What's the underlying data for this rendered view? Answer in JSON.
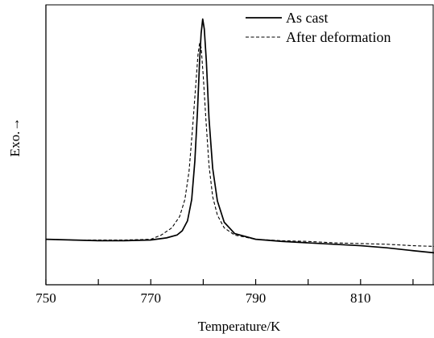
{
  "chart_data": {
    "type": "line",
    "xlabel": "Temperature/K",
    "ylabel": "Exo.→",
    "xlim": [
      750,
      824
    ],
    "ylim": [
      -0.32,
      1.65
    ],
    "grid": false,
    "legend_position": "top-right",
    "x_ticks": [
      750,
      760,
      770,
      780,
      790,
      800,
      810,
      820
    ],
    "x_tick_labels": [
      {
        "value": 750,
        "label": "750"
      },
      {
        "value": 770,
        "label": "770"
      },
      {
        "value": 790,
        "label": "790"
      },
      {
        "value": 810,
        "label": "810"
      }
    ],
    "series": [
      {
        "name": "As cast",
        "style": "solid",
        "color": "#000000",
        "x": [
          750,
          755,
          760,
          765,
          770,
          773,
          775,
          776,
          777,
          777.8,
          778.4,
          778.9,
          779.3,
          779.6,
          779.9,
          780.2,
          780.6,
          781.1,
          781.8,
          782.7,
          784,
          786,
          790,
          795,
          800,
          805,
          810,
          815,
          820,
          824
        ],
        "y": [
          0.0,
          -0.005,
          -0.01,
          -0.01,
          -0.005,
          0.01,
          0.03,
          0.06,
          0.13,
          0.28,
          0.55,
          0.9,
          1.25,
          1.45,
          1.55,
          1.48,
          1.25,
          0.85,
          0.5,
          0.27,
          0.12,
          0.04,
          0.0,
          -0.015,
          -0.025,
          -0.035,
          -0.045,
          -0.06,
          -0.08,
          -0.095
        ]
      },
      {
        "name": "After deformation",
        "style": "dashed",
        "color": "#000000",
        "x": [
          750,
          755,
          760,
          765,
          770,
          772,
          774,
          775.5,
          776.5,
          777.3,
          778,
          778.6,
          779,
          779.3,
          779.6,
          780,
          780.5,
          781.1,
          781.8,
          782.7,
          784,
          786,
          790,
          795,
          800,
          805,
          810,
          815,
          820,
          824
        ],
        "y": [
          0.0,
          -0.005,
          -0.005,
          -0.005,
          0.0,
          0.03,
          0.08,
          0.16,
          0.28,
          0.48,
          0.8,
          1.1,
          1.3,
          1.38,
          1.35,
          1.15,
          0.85,
          0.52,
          0.3,
          0.17,
          0.08,
          0.03,
          0.0,
          -0.01,
          -0.015,
          -0.025,
          -0.03,
          -0.035,
          -0.045,
          -0.05
        ]
      }
    ]
  }
}
